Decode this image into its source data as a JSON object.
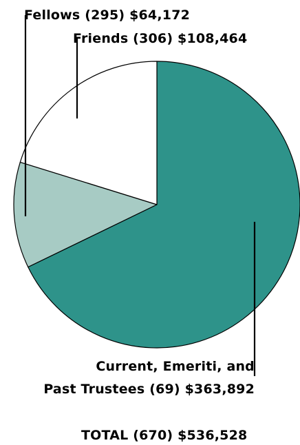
{
  "chart_data": {
    "type": "pie",
    "slices": [
      {
        "label_lines": [
          "Current, Emeriti, and",
          "Past Trustees (69) $363,892"
        ],
        "count": 69,
        "value": 363892,
        "color": "#2e938a"
      },
      {
        "label_lines": [
          "Fellows (295) $64,172"
        ],
        "count": 295,
        "value": 64172,
        "color": "#a7cbc4"
      },
      {
        "label_lines": [
          "Friends (306) $108,464"
        ],
        "count": 306,
        "value": 108464,
        "color": "#ffffff"
      }
    ],
    "total_label": "TOTAL (670) $536,528"
  }
}
